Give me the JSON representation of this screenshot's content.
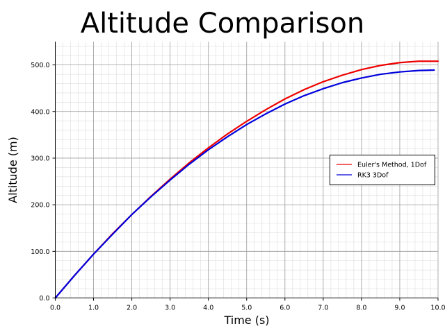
{
  "chart_data": {
    "type": "line",
    "title": "Altitude Comparison",
    "xlabel": "Time (s)",
    "ylabel": "Altitude (m)",
    "xlim": [
      0,
      10
    ],
    "ylim": [
      0,
      550
    ],
    "x_ticks": [
      0,
      1,
      2,
      3,
      4,
      5,
      6,
      7,
      8,
      9,
      10
    ],
    "x_tick_labels": [
      "0.0",
      "1.0",
      "2.0",
      "3.0",
      "4.0",
      "5.0",
      "6.0",
      "7.0",
      "8.0",
      "9.0",
      "10.0"
    ],
    "y_ticks": [
      0,
      100,
      200,
      300,
      400,
      500
    ],
    "y_tick_labels": [
      "0.0",
      "100.0",
      "200.0",
      "300.0",
      "400.0",
      "500.0"
    ],
    "grid": true,
    "minor_grid": true,
    "legend_position": "center-right",
    "series": [
      {
        "name": "Euler's Method, 1Dof",
        "color": "#ee0000",
        "x": [
          0,
          0.5,
          1,
          1.5,
          2,
          2.5,
          3,
          3.5,
          4,
          4.5,
          5,
          5.5,
          6,
          6.5,
          7,
          7.5,
          8,
          8.5,
          9,
          9.5,
          10
        ],
        "y": [
          0,
          48,
          94,
          138,
          179,
          218,
          255,
          290,
          322,
          352,
          379,
          404,
          427,
          447,
          464,
          478,
          490,
          499,
          505,
          508,
          508
        ]
      },
      {
        "name": "RK3 3Dof",
        "color": "#0000dd",
        "x": [
          0,
          0.5,
          1,
          1.5,
          2,
          2.5,
          3,
          3.5,
          4,
          4.5,
          5,
          5.5,
          6,
          6.5,
          7,
          7.5,
          8,
          8.5,
          9,
          9.5,
          9.9
        ],
        "y": [
          0,
          48,
          94,
          137,
          179,
          217,
          253,
          287,
          318,
          346,
          372,
          395,
          416,
          434,
          449,
          462,
          472,
          480,
          485,
          488,
          489
        ]
      }
    ]
  }
}
